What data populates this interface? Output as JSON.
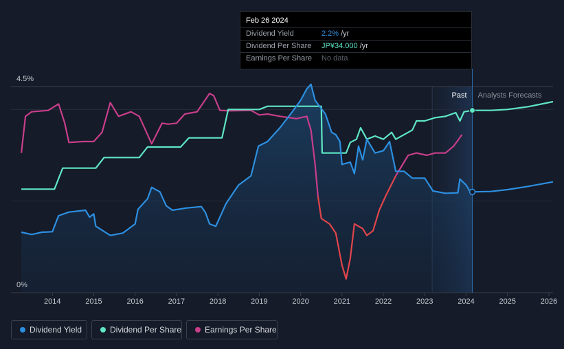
{
  "chart_data": {
    "type": "line",
    "title": "",
    "x_axis": {
      "range": [
        2013.0,
        2026.1
      ],
      "ticks": [
        "2014",
        "2015",
        "2016",
        "2017",
        "2018",
        "2019",
        "2020",
        "2021",
        "2022",
        "2023",
        "2024",
        "2025",
        "2026"
      ]
    },
    "y_axis": {
      "range": [
        0,
        4.5
      ],
      "ticks": [
        "0%",
        "4.5%"
      ],
      "gridlines": [
        2.0,
        4.0
      ]
    },
    "regions": {
      "past_label": "Past",
      "forecast_label": "Analysts Forecasts",
      "past_start": 2023.18,
      "forecast_start": 2024.15
    },
    "series": [
      {
        "name": "Dividend Yield",
        "unit": "%",
        "color": "#2d8fe0",
        "points": [
          [
            2013.25,
            1.32
          ],
          [
            2013.5,
            1.27
          ],
          [
            2013.75,
            1.32
          ],
          [
            2014.0,
            1.33
          ],
          [
            2014.15,
            1.68
          ],
          [
            2014.4,
            1.76
          ],
          [
            2014.8,
            1.8
          ],
          [
            2014.9,
            1.65
          ],
          [
            2015.0,
            1.72
          ],
          [
            2015.05,
            1.45
          ],
          [
            2015.4,
            1.25
          ],
          [
            2015.7,
            1.3
          ],
          [
            2016.0,
            1.5
          ],
          [
            2016.07,
            1.82
          ],
          [
            2016.3,
            2.05
          ],
          [
            2016.4,
            2.3
          ],
          [
            2016.6,
            2.2
          ],
          [
            2016.75,
            1.9
          ],
          [
            2016.9,
            1.8
          ],
          [
            2017.25,
            1.85
          ],
          [
            2017.6,
            1.88
          ],
          [
            2017.7,
            1.75
          ],
          [
            2017.8,
            1.5
          ],
          [
            2017.95,
            1.45
          ],
          [
            2018.2,
            1.95
          ],
          [
            2018.5,
            2.35
          ],
          [
            2018.8,
            2.55
          ],
          [
            2018.98,
            3.2
          ],
          [
            2019.2,
            3.3
          ],
          [
            2019.5,
            3.6
          ],
          [
            2019.8,
            3.95
          ],
          [
            2020.0,
            4.2
          ],
          [
            2020.15,
            4.45
          ],
          [
            2020.25,
            4.55
          ],
          [
            2020.35,
            4.2
          ],
          [
            2020.6,
            3.9
          ],
          [
            2020.75,
            3.5
          ],
          [
            2020.85,
            3.45
          ],
          [
            2020.95,
            3.3
          ],
          [
            2021.0,
            2.8
          ],
          [
            2021.2,
            2.85
          ],
          [
            2021.3,
            2.6
          ],
          [
            2021.4,
            3.2
          ],
          [
            2021.5,
            2.9
          ],
          [
            2021.6,
            3.35
          ],
          [
            2021.8,
            3.05
          ],
          [
            2022.0,
            3.1
          ],
          [
            2022.15,
            3.3
          ],
          [
            2022.3,
            2.65
          ],
          [
            2022.5,
            2.65
          ],
          [
            2022.7,
            2.5
          ],
          [
            2022.85,
            2.5
          ],
          [
            2023.0,
            2.5
          ],
          [
            2023.2,
            2.22
          ],
          [
            2023.5,
            2.17
          ],
          [
            2023.8,
            2.18
          ],
          [
            2023.85,
            2.48
          ],
          [
            2024.0,
            2.35
          ],
          [
            2024.1,
            2.2
          ],
          [
            2024.15,
            2.2
          ],
          [
            2024.6,
            2.21
          ],
          [
            2025.0,
            2.25
          ],
          [
            2025.5,
            2.32
          ],
          [
            2026.1,
            2.42
          ]
        ]
      },
      {
        "name": "Dividend Per Share",
        "unit": "JP¥",
        "color": "#5fe6c5",
        "points": [
          [
            2013.25,
            2.26
          ],
          [
            2014.05,
            2.26
          ],
          [
            2014.25,
            2.72
          ],
          [
            2015.05,
            2.72
          ],
          [
            2015.25,
            2.95
          ],
          [
            2016.1,
            2.95
          ],
          [
            2016.3,
            3.18
          ],
          [
            2017.1,
            3.18
          ],
          [
            2017.3,
            3.38
          ],
          [
            2018.1,
            3.38
          ],
          [
            2018.25,
            4.0
          ],
          [
            2019.0,
            4.0
          ],
          [
            2019.2,
            4.07
          ],
          [
            2020.5,
            4.07
          ],
          [
            2020.52,
            3.05
          ],
          [
            2021.1,
            3.05
          ],
          [
            2021.2,
            3.28
          ],
          [
            2021.35,
            3.35
          ],
          [
            2021.45,
            3.6
          ],
          [
            2021.6,
            3.35
          ],
          [
            2021.8,
            3.42
          ],
          [
            2022.0,
            3.35
          ],
          [
            2022.2,
            3.5
          ],
          [
            2022.3,
            3.35
          ],
          [
            2022.7,
            3.55
          ],
          [
            2022.75,
            3.65
          ],
          [
            2022.8,
            3.75
          ],
          [
            2023.0,
            3.75
          ],
          [
            2023.25,
            3.82
          ],
          [
            2023.5,
            3.85
          ],
          [
            2023.75,
            3.93
          ],
          [
            2023.85,
            3.75
          ],
          [
            2023.95,
            3.95
          ],
          [
            2024.15,
            3.98
          ],
          [
            2024.6,
            3.98
          ],
          [
            2025.0,
            4.0
          ],
          [
            2025.5,
            4.06
          ],
          [
            2026.1,
            4.17
          ]
        ]
      },
      {
        "name": "Earnings Per Share",
        "unit": "JP¥",
        "color": "#c83e8b",
        "points": [
          [
            2013.25,
            3.05
          ],
          [
            2013.35,
            3.85
          ],
          [
            2013.5,
            3.95
          ],
          [
            2013.9,
            3.98
          ],
          [
            2014.15,
            4.12
          ],
          [
            2014.3,
            3.7
          ],
          [
            2014.4,
            3.28
          ],
          [
            2014.75,
            3.3
          ],
          [
            2015.0,
            3.3
          ],
          [
            2015.2,
            3.5
          ],
          [
            2015.4,
            4.15
          ],
          [
            2015.6,
            3.85
          ],
          [
            2015.9,
            3.95
          ],
          [
            2016.1,
            3.85
          ],
          [
            2016.25,
            3.55
          ],
          [
            2016.4,
            3.25
          ],
          [
            2016.65,
            3.7
          ],
          [
            2016.8,
            3.68
          ],
          [
            2017.0,
            3.7
          ],
          [
            2017.2,
            3.9
          ],
          [
            2017.5,
            3.95
          ],
          [
            2017.8,
            4.35
          ],
          [
            2017.9,
            4.3
          ],
          [
            2018.05,
            3.98
          ],
          [
            2018.3,
            3.97
          ],
          [
            2018.8,
            3.98
          ],
          [
            2019.0,
            3.88
          ],
          [
            2019.2,
            3.9
          ],
          [
            2019.5,
            3.85
          ],
          [
            2019.9,
            3.8
          ],
          [
            2020.15,
            3.85
          ],
          [
            2020.25,
            3.55
          ],
          [
            2020.35,
            2.8
          ],
          [
            2020.42,
            2.1
          ],
          [
            2020.5,
            1.62
          ],
          [
            2020.7,
            1.5
          ],
          [
            2020.85,
            1.3
          ],
          [
            2021.0,
            0.6
          ],
          [
            2021.1,
            0.3
          ],
          [
            2021.2,
            0.75
          ],
          [
            2021.3,
            1.5
          ],
          [
            2021.5,
            1.4
          ],
          [
            2021.6,
            1.25
          ],
          [
            2021.75,
            1.35
          ],
          [
            2021.9,
            1.8
          ],
          [
            2022.05,
            2.1
          ],
          [
            2022.3,
            2.55
          ],
          [
            2022.4,
            2.7
          ],
          [
            2022.6,
            3.0
          ],
          [
            2022.8,
            3.05
          ],
          [
            2023.05,
            3.0
          ],
          [
            2023.25,
            3.05
          ],
          [
            2023.5,
            3.05
          ],
          [
            2023.7,
            3.2
          ],
          [
            2023.9,
            3.45
          ]
        ]
      }
    ],
    "markers": {
      "date": 2024.15,
      "dividend_yield": 2.2,
      "dividend_per_share": 3.98
    },
    "tooltip": {
      "date": "Feb 26 2024",
      "rows": [
        {
          "label": "Dividend Yield",
          "value": "2.2%",
          "unit": "/yr",
          "color": "#2d8fe0"
        },
        {
          "label": "Dividend Per Share",
          "value": "JP¥34.000",
          "unit": "/yr",
          "color": "#5fe6c5"
        },
        {
          "label": "Earnings Per Share",
          "value": "No data",
          "unit": "",
          "color": "#5d626c"
        }
      ]
    },
    "legend": [
      {
        "label": "Dividend Yield",
        "color": "#2d8fe0"
      },
      {
        "label": "Dividend Per Share",
        "color": "#5fe6c5"
      },
      {
        "label": "Earnings Per Share",
        "color": "#c83e8b"
      }
    ]
  }
}
